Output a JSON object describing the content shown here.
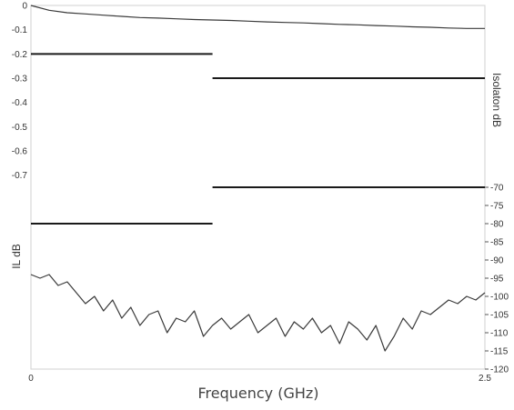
{
  "chart_data": {
    "type": "line",
    "xlabel": "Frequency (GHz)",
    "ylabel_left": "IL dB",
    "ylabel_right": "Isolaton dB",
    "x_ticks": [
      "0",
      "2.5"
    ],
    "xlim": [
      0,
      2.5
    ],
    "left_axis": {
      "ticks": [
        "0",
        "-0.1",
        "-0.2",
        "-0.3",
        "-0.4",
        "-0.5",
        "-0.6",
        "-0.7"
      ],
      "ylim": [
        -1.5,
        0
      ]
    },
    "right_axis": {
      "ticks": [
        "-70",
        "-75",
        "-80",
        "-85",
        "-90",
        "-95",
        "-100",
        "-105",
        "-110",
        "-115",
        "-120"
      ],
      "ylim": [
        -120,
        -20
      ]
    },
    "limit_lines": [
      {
        "axis": "left",
        "x": [
          0,
          1.0
        ],
        "y": -0.2
      },
      {
        "axis": "left",
        "x": [
          1.0,
          2.5
        ],
        "y": -0.3
      },
      {
        "axis": "right",
        "x": [
          1.0,
          2.5
        ],
        "y": -70
      },
      {
        "axis": "right",
        "x": [
          0,
          1.0
        ],
        "y": -80
      }
    ],
    "series": [
      {
        "axis": "left",
        "x": [
          0,
          0.1,
          0.2,
          0.3,
          0.4,
          0.5,
          0.6,
          0.7,
          0.8,
          0.9,
          1.0,
          1.1,
          1.2,
          1.3,
          1.4,
          1.5,
          1.6,
          1.7,
          1.8,
          1.9,
          2.0,
          2.1,
          2.2,
          2.3,
          2.4,
          2.5
        ],
        "y": [
          0,
          -0.02,
          -0.03,
          -0.035,
          -0.04,
          -0.045,
          -0.05,
          -0.052,
          -0.055,
          -0.058,
          -0.06,
          -0.062,
          -0.065,
          -0.068,
          -0.07,
          -0.072,
          -0.075,
          -0.078,
          -0.08,
          -0.083,
          -0.085,
          -0.088,
          -0.09,
          -0.093,
          -0.095,
          -0.095
        ]
      },
      {
        "axis": "right",
        "x": [
          0,
          0.05,
          0.1,
          0.15,
          0.2,
          0.25,
          0.3,
          0.35,
          0.4,
          0.45,
          0.5,
          0.55,
          0.6,
          0.65,
          0.7,
          0.75,
          0.8,
          0.85,
          0.9,
          0.95,
          1.0,
          1.05,
          1.1,
          1.15,
          1.2,
          1.25,
          1.3,
          1.35,
          1.4,
          1.45,
          1.5,
          1.55,
          1.6,
          1.65,
          1.7,
          1.75,
          1.8,
          1.85,
          1.9,
          1.95,
          2.0,
          2.05,
          2.1,
          2.15,
          2.2,
          2.25,
          2.3,
          2.35,
          2.4,
          2.45,
          2.5
        ],
        "y": [
          -94,
          -95,
          -94,
          -97,
          -96,
          -99,
          -102,
          -100,
          -104,
          -101,
          -106,
          -103,
          -108,
          -105,
          -104,
          -110,
          -106,
          -107,
          -104,
          -111,
          -108,
          -106,
          -109,
          -107,
          -105,
          -110,
          -108,
          -106,
          -111,
          -107,
          -109,
          -106,
          -110,
          -108,
          -113,
          -107,
          -109,
          -112,
          -108,
          -115,
          -111,
          -106,
          -109,
          -104,
          -105,
          -103,
          -101,
          -102,
          -100,
          -101,
          -99
        ]
      }
    ]
  }
}
